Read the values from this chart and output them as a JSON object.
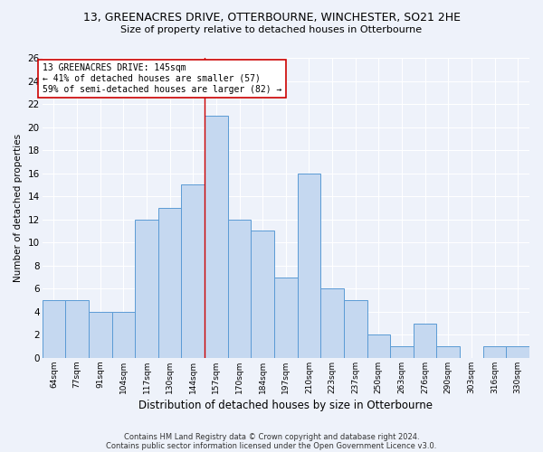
{
  "title1": "13, GREENACRES DRIVE, OTTERBOURNE, WINCHESTER, SO21 2HE",
  "title2": "Size of property relative to detached houses in Otterbourne",
  "xlabel": "Distribution of detached houses by size in Otterbourne",
  "ylabel": "Number of detached properties",
  "categories": [
    "64sqm",
    "77sqm",
    "91sqm",
    "104sqm",
    "117sqm",
    "130sqm",
    "144sqm",
    "157sqm",
    "170sqm",
    "184sqm",
    "197sqm",
    "210sqm",
    "223sqm",
    "237sqm",
    "250sqm",
    "263sqm",
    "276sqm",
    "290sqm",
    "303sqm",
    "316sqm",
    "330sqm"
  ],
  "values": [
    5,
    5,
    4,
    4,
    12,
    13,
    15,
    21,
    12,
    11,
    7,
    16,
    6,
    5,
    2,
    1,
    3,
    1,
    0,
    1,
    1
  ],
  "bar_color": "#c5d8f0",
  "bar_edge_color": "#5b9bd5",
  "vline_x": 6.5,
  "vline_color": "#cc0000",
  "annotation_text": "13 GREENACRES DRIVE: 145sqm\n← 41% of detached houses are smaller (57)\n59% of semi-detached houses are larger (82) →",
  "annotation_box_color": "white",
  "annotation_box_edge": "#cc0000",
  "footer1": "Contains HM Land Registry data © Crown copyright and database right 2024.",
  "footer2": "Contains public sector information licensed under the Open Government Licence v3.0.",
  "background_color": "#eef2fa",
  "ylim": [
    0,
    26
  ],
  "yticks": [
    0,
    2,
    4,
    6,
    8,
    10,
    12,
    14,
    16,
    18,
    20,
    22,
    24,
    26
  ]
}
